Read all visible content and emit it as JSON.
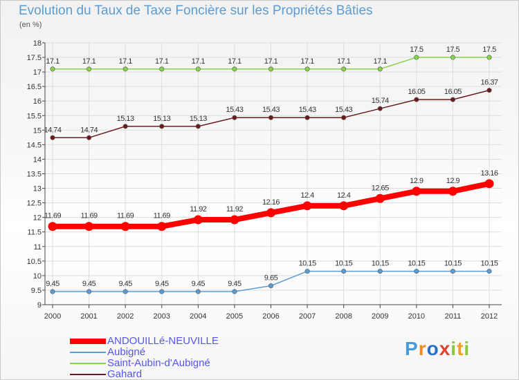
{
  "chart_data": {
    "type": "line",
    "title": "Evolution du Taux de Taxe Foncière sur les Propriétés Bâties",
    "subtitle": "(en %)",
    "x": [
      "2000",
      "2001",
      "2002",
      "2003",
      "2004",
      "2005",
      "2006",
      "2007",
      "2008",
      "2009",
      "2010",
      "2011",
      "2012"
    ],
    "ylim": [
      9,
      18
    ],
    "yticks": [
      "9",
      "9.5",
      "10",
      "10.5",
      "11",
      "11.5",
      "12",
      "12.5",
      "13",
      "13.5",
      "14",
      "14.5",
      "15",
      "15.5",
      "16",
      "16.5",
      "17",
      "17.5",
      "18"
    ],
    "grid": true,
    "legend_position": "bottom-left",
    "series": [
      {
        "name": "ANDOUILLé-NEUVILLE",
        "color": "#ff0000",
        "values": [
          11.69,
          11.69,
          11.69,
          11.69,
          11.92,
          11.92,
          12.16,
          12.4,
          12.4,
          12.65,
          12.9,
          12.9,
          13.16
        ],
        "labels": [
          "11.69",
          "11.69",
          "11.69",
          "11.69",
          "11.92",
          "11.92",
          "12.16",
          "12.4",
          "12.4",
          "12.65",
          "12.9",
          "12.9",
          "13.16"
        ]
      },
      {
        "name": "Aubigné",
        "color": "#5a9cd3",
        "values": [
          9.45,
          9.45,
          9.45,
          9.45,
          9.45,
          9.45,
          9.65,
          10.15,
          10.15,
          10.15,
          10.15,
          10.15,
          10.15
        ],
        "labels": [
          "9.45",
          "9.45",
          "9.45",
          "9.45",
          "9.45",
          "9.45",
          "9.65",
          "10.15",
          "10.15",
          "10.15",
          "10.15",
          "10.15",
          "10.15"
        ]
      },
      {
        "name": "Saint-Aubin-d'Aubigné",
        "color": "#86d34a",
        "values": [
          17.1,
          17.1,
          17.1,
          17.1,
          17.1,
          17.1,
          17.1,
          17.1,
          17.1,
          17.1,
          17.5,
          17.5,
          17.5
        ],
        "labels": [
          "17.1",
          "17.1",
          "17.1",
          "17.1",
          "17.1",
          "17.1",
          "17.1",
          "17.1",
          "17.1",
          "17.1",
          "17.5",
          "17.5",
          "17.5"
        ]
      },
      {
        "name": "Gahard",
        "color": "#6b1b1b",
        "values": [
          14.74,
          14.74,
          15.13,
          15.13,
          15.13,
          15.43,
          15.43,
          15.43,
          15.43,
          15.74,
          16.05,
          16.05,
          16.37
        ],
        "labels": [
          "14.74",
          "14.74",
          "15.13",
          "15.13",
          "15.13",
          "15.43",
          "15.43",
          "15.43",
          "15.43",
          "15.74",
          "16.05",
          "16.05",
          "16.37"
        ]
      }
    ]
  },
  "logo": {
    "p": "P",
    "r": "r",
    "o": "o",
    "x": "x",
    "i1": "i",
    "t": "t",
    "i2": "i"
  }
}
